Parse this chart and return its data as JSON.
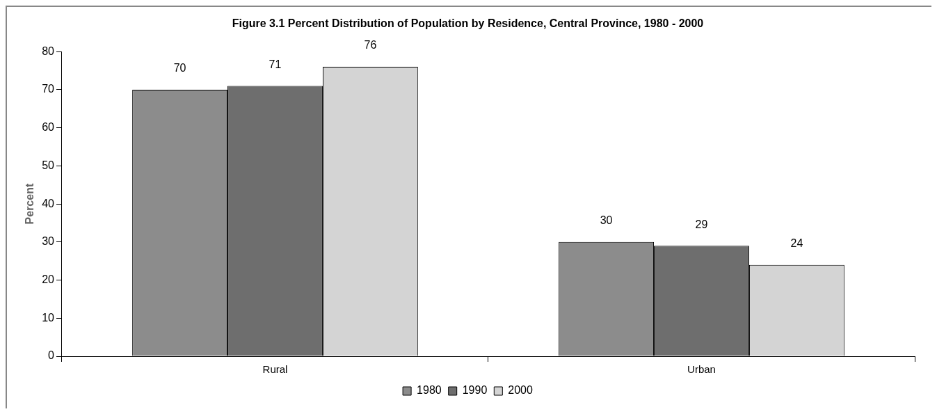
{
  "chart_data": {
    "type": "bar",
    "title": "Figure 3.1 Percent Distribution of Population by Residence, Central Province, 1980 - 2000",
    "ylabel": "Percent",
    "categories": [
      "Rural",
      "Urban"
    ],
    "series": [
      {
        "name": "1980",
        "color": "#8c8c8c",
        "values": [
          70,
          30
        ]
      },
      {
        "name": "1990",
        "color": "#6e6e6e",
        "values": [
          71,
          29
        ]
      },
      {
        "name": "2000",
        "color": "#d4d4d4",
        "values": [
          76,
          24
        ]
      }
    ],
    "ylim": [
      0,
      80
    ],
    "yticks": [
      0,
      10,
      20,
      30,
      40,
      50,
      60,
      70,
      80
    ],
    "data_labels": true,
    "legend": "bottom"
  }
}
